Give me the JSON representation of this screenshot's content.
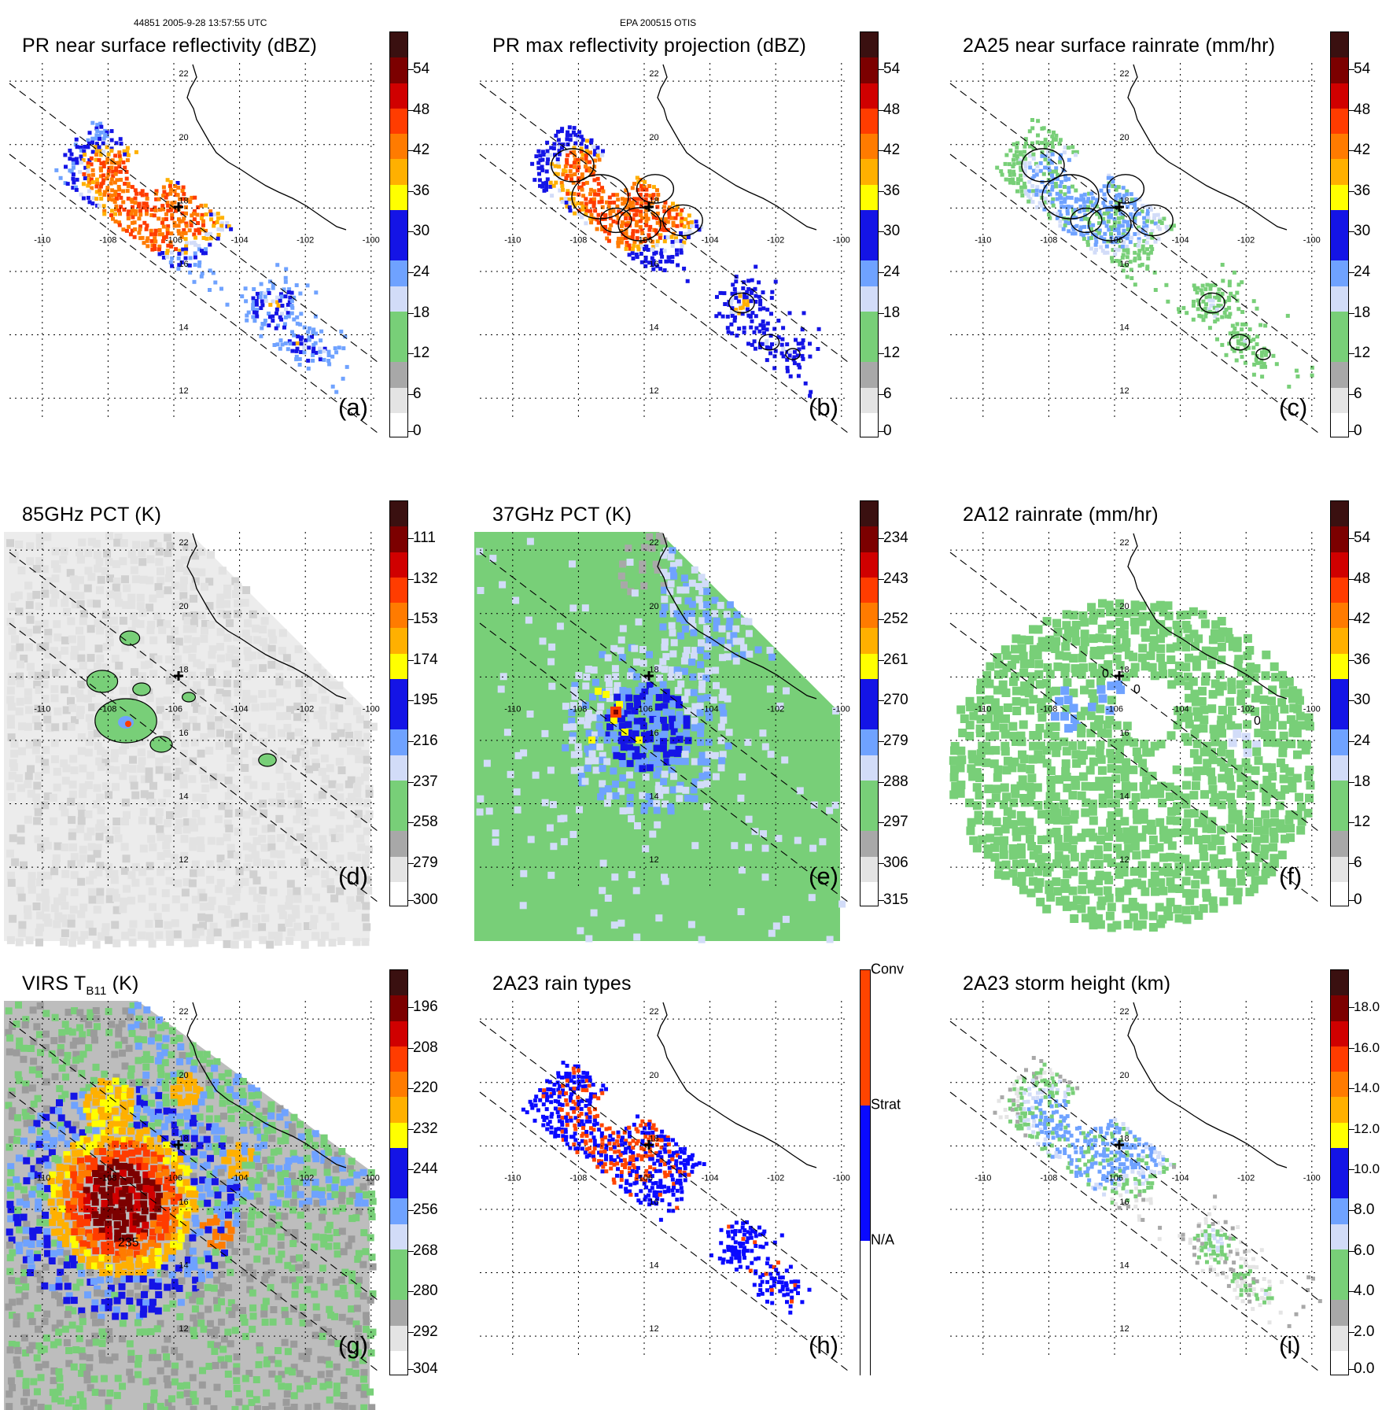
{
  "header": {
    "orbit_time": "44851 2005-9-28 13:57:55 UTC",
    "storm_id": "EPA 200515 OTIS"
  },
  "map": {
    "lon_labels": [
      "-110",
      "-108",
      "-106",
      "-104",
      "-102",
      "-100"
    ],
    "lat_labels": [
      "22",
      "20",
      "18",
      "16",
      "14",
      "12"
    ]
  },
  "panels": [
    {
      "id": "a",
      "title": "PR near surface reflectivity (dBZ)",
      "label": "(a)",
      "field": "pr",
      "colorbar": {
        "ticks": [
          "54",
          "48",
          "42",
          "36",
          "30",
          "24",
          "18",
          "12",
          "6",
          "0"
        ]
      }
    },
    {
      "id": "b",
      "title": "PR max reflectivity projection (dBZ)",
      "label": "(b)",
      "field": "pr_contour",
      "colorbar": {
        "ticks": [
          "54",
          "48",
          "42",
          "36",
          "30",
          "24",
          "18",
          "12",
          "6",
          "0"
        ]
      }
    },
    {
      "id": "c",
      "title": "2A25 near surface rainrate (mm/hr)",
      "label": "(c)",
      "field": "rain_contour",
      "colorbar": {
        "ticks": [
          "54",
          "48",
          "42",
          "36",
          "30",
          "24",
          "18",
          "12",
          "6",
          "0"
        ]
      }
    },
    {
      "id": "d",
      "title": "85GHz PCT (K)",
      "label": "(d)",
      "field": "pct85",
      "colorbar": {
        "ticks": [
          "111",
          "132",
          "153",
          "174",
          "195",
          "216",
          "237",
          "258",
          "279",
          "300"
        ]
      }
    },
    {
      "id": "e",
      "title": "37GHz PCT (K)",
      "label": "(e)",
      "field": "pct37",
      "colorbar": {
        "ticks": [
          "234",
          "243",
          "252",
          "261",
          "270",
          "279",
          "288",
          "297",
          "306",
          "315"
        ]
      }
    },
    {
      "id": "f",
      "title": "2A12 rainrate (mm/hr)",
      "label": "(f)",
      "field": "tmi_rain",
      "colorbar": {
        "ticks": [
          "54",
          "48",
          "42",
          "36",
          "30",
          "24",
          "18",
          "12",
          "6",
          "0"
        ]
      },
      "contour_labels": [
        "0",
        "0",
        "0"
      ]
    },
    {
      "id": "g",
      "title": "VIRS T",
      "title_sub": "B11",
      "title_tail": " (K)",
      "label": "(g)",
      "field": "virs",
      "colorbar": {
        "ticks": [
          "196",
          "208",
          "220",
          "232",
          "244",
          "256",
          "268",
          "280",
          "292",
          "304"
        ]
      },
      "contour_labels": [
        "235"
      ]
    },
    {
      "id": "h",
      "title": "2A23 rain types",
      "label": "(h)",
      "field": "raintype",
      "colorbar": {
        "categories": [
          "Conv",
          "Strat",
          "N/A"
        ]
      }
    },
    {
      "id": "i",
      "title": "2A23 storm height (km)",
      "label": "(i)",
      "field": "height",
      "colorbar": {
        "ticks": [
          "18.0",
          "16.0",
          "14.0",
          "12.0",
          "10.0",
          "8.0",
          "6.0",
          "4.0",
          "2.0",
          "0.0"
        ]
      }
    }
  ],
  "colors": {
    "scale": [
      "#ffffff",
      "#e4e4e4",
      "#a8a8a8",
      "#78cf78",
      "#d2dcf8",
      "#6fa2ff",
      "#1414e6",
      "#ffff00",
      "#ffb000",
      "#ff7b00",
      "#ff3c00",
      "#d00000",
      "#7c0000",
      "#3a1010"
    ],
    "raintype": {
      "conv": "#ff4400",
      "strat": "#0a0aff",
      "na": "#ffffff"
    },
    "land": "#000000",
    "grid": "#000000"
  }
}
